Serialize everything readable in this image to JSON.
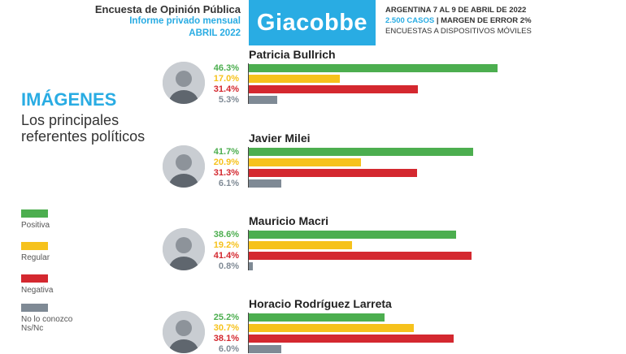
{
  "header": {
    "survey_title": "Encuesta de Opinión Pública",
    "report_type": "Informe privado mensual",
    "period": "ABRIL 2022",
    "brand": "Giacobbe",
    "country_dates": "ARGENTINA 7 AL 9 DE ABRIL DE 2022",
    "cases": "2.500 CASOS",
    "margin": "| MARGEN DE ERROR 2%",
    "method": "ENCUESTAS A DISPOSITIVOS MÓVILES"
  },
  "section": {
    "title": "IMÁGENES",
    "subtitle": "Los principales referentes políticos"
  },
  "colors": {
    "accent": "#29ace3",
    "positiva": "#4cae4f",
    "regular": "#f6c21c",
    "negativa": "#d4282f",
    "ns": "#7f8a95"
  },
  "legend": [
    {
      "label": "Positiva",
      "color": "#4cae4f"
    },
    {
      "label": "Regular",
      "color": "#f6c21c"
    },
    {
      "label": "Negativa",
      "color": "#d4282f"
    },
    {
      "label": "No lo conozco\nNs/Nc",
      "color": "#7f8a95"
    }
  ],
  "chart_data": {
    "type": "bar",
    "orientation": "horizontal",
    "unit": "%",
    "categories": [
      "Positiva",
      "Regular",
      "Negativa",
      "No lo conozco Ns/Nc"
    ],
    "groups": [
      {
        "name": "Patricia Bullrich",
        "values": [
          46.3,
          17.0,
          31.4,
          5.3
        ],
        "labels": [
          "46.3%",
          "17.0%",
          "31.4%",
          "5.3%"
        ]
      },
      {
        "name": "Javier Milei",
        "values": [
          41.7,
          20.9,
          31.3,
          6.1
        ],
        "labels": [
          "41.7%",
          "20.9%",
          "31.3%",
          "6.1%"
        ]
      },
      {
        "name": "Mauricio Macri",
        "values": [
          38.6,
          19.2,
          41.4,
          0.8
        ],
        "labels": [
          "38.6%",
          "19.2%",
          "41.4%",
          "0.8%"
        ]
      },
      {
        "name": "Horacio Rodríguez Larreta",
        "values": [
          25.2,
          30.7,
          38.1,
          6.0
        ],
        "labels": [
          "25.2%",
          "30.7%",
          "38.1%",
          "6.0%"
        ]
      }
    ],
    "xlim": [
      0,
      50
    ],
    "grid": false,
    "legend_position": "left"
  }
}
